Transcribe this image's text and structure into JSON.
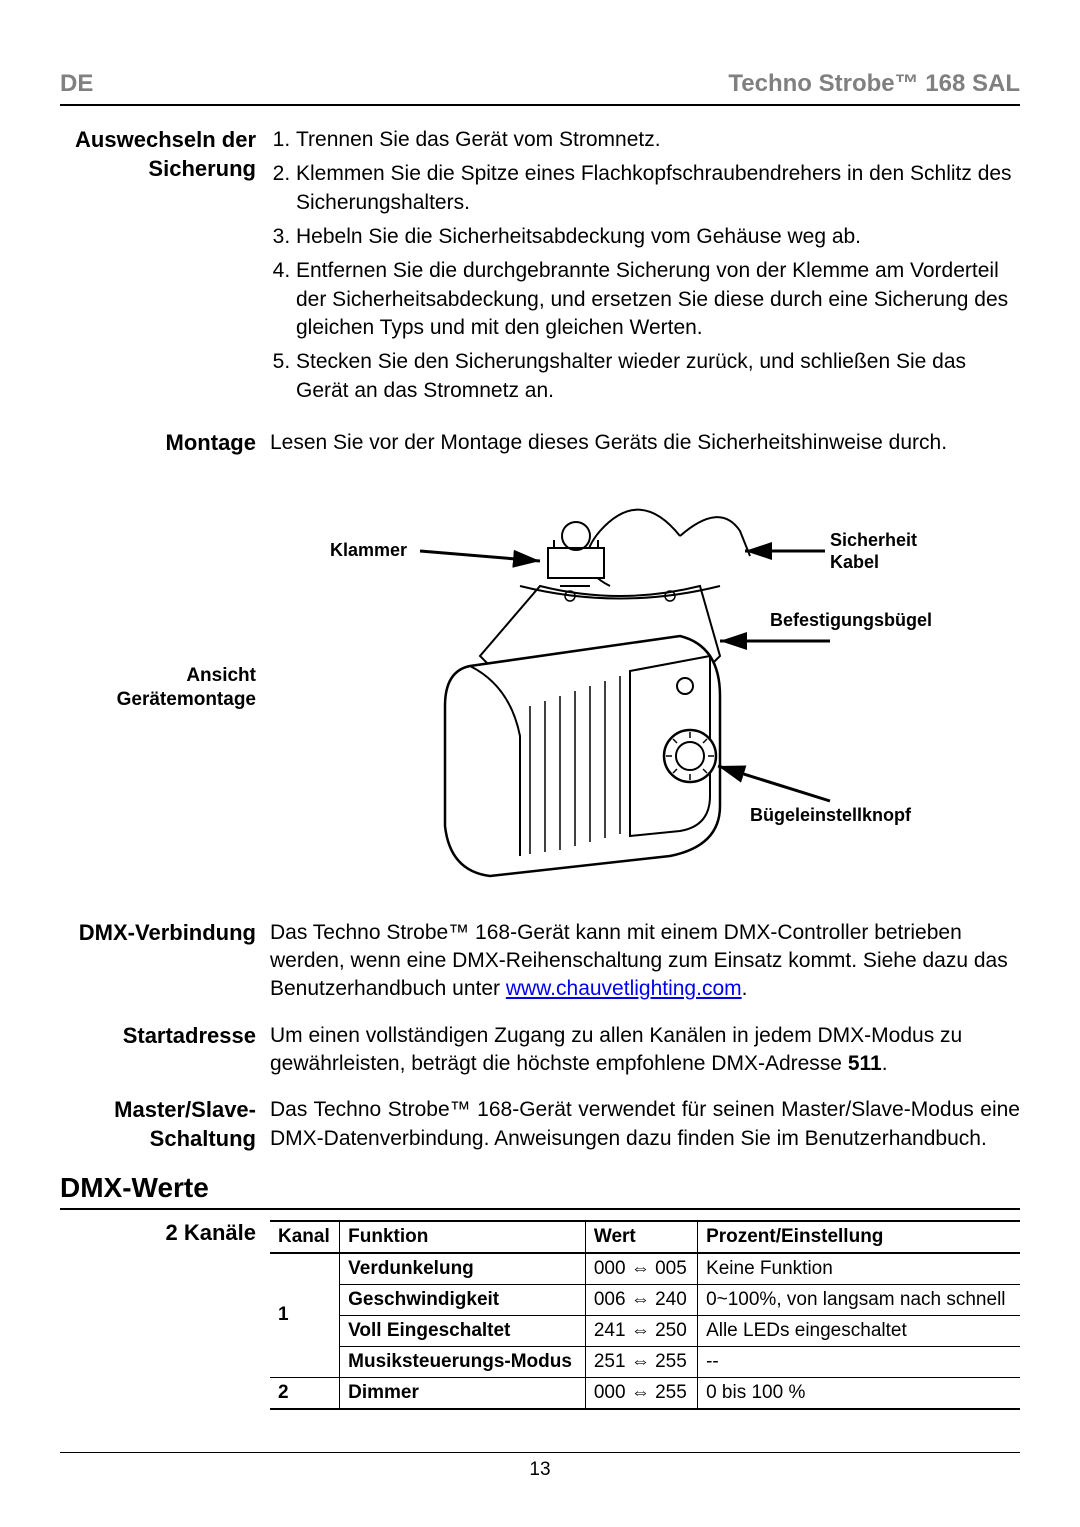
{
  "header": {
    "left": "DE",
    "right": "Techno Strobe™ 168 SAL"
  },
  "sections": {
    "fuse": {
      "label": "Auswechseln der Sicherung",
      "items": [
        "Trennen Sie das Gerät vom Stromnetz.",
        "Klemmen Sie die Spitze eines Flachkopfschraubendrehers in den Schlitz des Sicherungshalters.",
        "Hebeln Sie die Sicherheitsabdeckung vom Gehäuse weg ab.",
        "Entfernen Sie die durchgebrannte Sicherung von der Klemme am Vorderteil der Sicherheitsabdeckung, und ersetzen Sie diese durch eine Sicherung des gleichen Typs und mit den gleichen Werten.",
        "Stecken Sie den Sicherungshalter wieder zurück, und schließen Sie das Gerät an das Stromnetz an."
      ]
    },
    "mount": {
      "label": "Montage",
      "text": "Lesen Sie vor der Montage dieses Geräts die Sicherheitshinweise durch."
    },
    "diagram": {
      "label_line1": "Ansicht",
      "label_line2": "Gerätemontage",
      "callouts": {
        "clamp": "Klammer",
        "safety_cable_l1": "Sicherheit",
        "safety_cable_l2": "Kabel",
        "bracket": "Befestigungsbügel",
        "knob": "Bügeleinstellknopf"
      }
    },
    "dmx_link": {
      "label": "DMX-Verbindung",
      "text_pre": "Das Techno Strobe™ 168-Gerät kann mit einem DMX-Controller betrieben werden, wenn eine DMX-Reihenschaltung zum Einsatz kommt. Siehe dazu das Benutzerhandbuch unter ",
      "link": "www.chauvetlighting.com",
      "text_post": "."
    },
    "start_addr": {
      "label": "Startadresse",
      "text": "Um einen vollständigen Zugang zu allen Kanälen in jedem DMX-Modus zu gewährleisten, beträgt die höchste empfohlene DMX-Adresse ",
      "num": "511",
      "tail": "."
    },
    "master_slave": {
      "label": "Master/Slave-Schaltung",
      "text": "Das Techno Strobe™ 168-Gerät verwendet für seinen Master/Slave-Modus eine DMX-Datenverbindung. Anweisungen dazu finden Sie im Benutzerhandbuch."
    }
  },
  "dmx_values": {
    "title": "DMX-Werte",
    "subtitle": "2 Kanäle",
    "headers": [
      "Kanal",
      "Funktion",
      "Wert",
      "Prozent/Einstellung"
    ],
    "rows": [
      {
        "kanal": "1",
        "rowspan": 4,
        "funktion": "Verdunkelung",
        "bold": true,
        "wert": "000 ⇔ 005",
        "prozent": "Keine Funktion"
      },
      {
        "funktion": "Geschwindigkeit",
        "bold": true,
        "wert": "006 ⇔ 240",
        "prozent": "0~100%, von langsam nach schnell"
      },
      {
        "funktion": "Voll Eingeschaltet",
        "bold": true,
        "wert": "241 ⇔ 250",
        "prozent": "Alle LEDs eingeschaltet"
      },
      {
        "funktion": "Musiksteuerungs-Modus",
        "bold": true,
        "wert": "251 ⇔ 255",
        "prozent": "--"
      },
      {
        "kanal": "2",
        "rowspan": 1,
        "funktion": "Dimmer",
        "bold": true,
        "wert": "000 ⇔ 255",
        "prozent": "0 bis 100 %"
      }
    ]
  },
  "page_number": "13"
}
